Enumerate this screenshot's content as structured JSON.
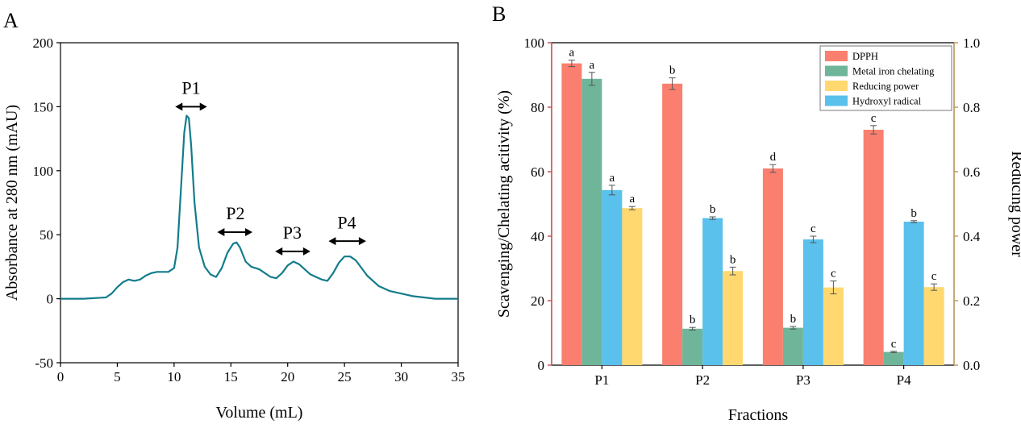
{
  "colors": {
    "trace": "#137c8b",
    "left_axis_b": "#c0504d",
    "right_axis_b": "#b8955a",
    "dpph": "#fa7f6f",
    "chelating": "#6fb59a",
    "reducing": "#ffd86f",
    "hydroxyl": "#5ac0ec"
  },
  "chart_data": [
    {
      "panel": "A",
      "type": "line",
      "xlabel": "Volume (mL)",
      "ylabel": "Absorbance at 280 nm (mAU)",
      "xlim": [
        0,
        35
      ],
      "ylim": [
        -50,
        200
      ],
      "xticks": [
        0,
        5,
        10,
        15,
        20,
        25,
        30,
        35
      ],
      "yticks": [
        -50,
        0,
        50,
        100,
        150,
        200
      ],
      "series": [
        {
          "x": [
            0,
            2,
            4,
            4.5,
            5,
            5.5,
            6,
            6.5,
            7,
            7.5,
            8,
            8.5,
            9,
            9.5,
            10,
            10.3,
            10.6,
            10.9,
            11.1,
            11.3,
            11.5,
            11.8,
            12.2,
            12.7,
            13.2,
            13.7,
            14.2,
            14.7,
            15.2,
            15.5,
            15.8,
            16.3,
            16.8,
            17.5,
            18,
            18.5,
            19,
            19.5,
            20,
            20.5,
            21,
            21.5,
            22,
            22.5,
            23,
            23.5,
            24,
            24.5,
            25,
            25.5,
            26,
            26.5,
            27,
            28,
            29,
            30,
            31,
            32,
            33,
            34,
            35
          ],
          "y": [
            0,
            0,
            1,
            4,
            9,
            13,
            15,
            14,
            15,
            18,
            20,
            21,
            21,
            21,
            24,
            40,
            85,
            130,
            143,
            141,
            120,
            75,
            40,
            25,
            19,
            17,
            24,
            36,
            43,
            44,
            40,
            29,
            25,
            23,
            20,
            17,
            16,
            20,
            26,
            29,
            27,
            23,
            19,
            17,
            15,
            14,
            20,
            28,
            33,
            33,
            30,
            24,
            18,
            10,
            6,
            4,
            2,
            1,
            0,
            0,
            0
          ]
        }
      ],
      "peaks": [
        {
          "label": "P1"
        },
        {
          "label": "P2"
        },
        {
          "label": "P3"
        },
        {
          "label": "P4"
        }
      ]
    },
    {
      "panel": "B",
      "type": "bar",
      "xlabel": "Fractions",
      "ylabel": "Scavenging/Chelating acitivity (%)",
      "y2label": "Reducing power",
      "categories": [
        "P1",
        "P2",
        "P3",
        "P4"
      ],
      "ylim": [
        0,
        100
      ],
      "y2lim": [
        0.0,
        1.0
      ],
      "yticks": [
        0,
        20,
        40,
        60,
        80,
        100
      ],
      "y2ticks": [
        "0.0",
        "0.2",
        "0.4",
        "0.6",
        "0.8",
        "1.0"
      ],
      "legend_position": "top-right",
      "series": [
        {
          "name": "DPPH",
          "axis": "left",
          "values": [
            93.6,
            87.3,
            61.0,
            73.0
          ],
          "errors": [
            1.0,
            1.8,
            1.2,
            1.3
          ],
          "letters": [
            "a",
            "b",
            "d",
            "c"
          ]
        },
        {
          "name": "Metal iron chelating",
          "axis": "left",
          "values": [
            88.8,
            11.3,
            11.6,
            4.1
          ],
          "errors": [
            2.0,
            0.4,
            0.4,
            0.2
          ],
          "letters": [
            "a",
            "b",
            "b",
            "c"
          ]
        },
        {
          "name": "Reducing power",
          "axis": "right",
          "values": [
            0.487,
            0.292,
            0.241,
            0.242
          ],
          "errors": [
            0.005,
            0.012,
            0.02,
            0.01
          ],
          "letters": [
            "a",
            "b",
            "c",
            "c"
          ]
        },
        {
          "name": "Hydroxyl radical",
          "axis": "left",
          "values": [
            54.3,
            45.6,
            39.0,
            44.5
          ],
          "errors": [
            1.5,
            0.4,
            1.0,
            0.3
          ],
          "letters": [
            "a",
            "b",
            "c",
            "b"
          ]
        }
      ],
      "bar_order": [
        "DPPH",
        "Metal iron chelating",
        "Hydroxyl radical",
        "Reducing power"
      ]
    }
  ],
  "panels": {
    "a_letter": "A",
    "b_letter": "B"
  }
}
